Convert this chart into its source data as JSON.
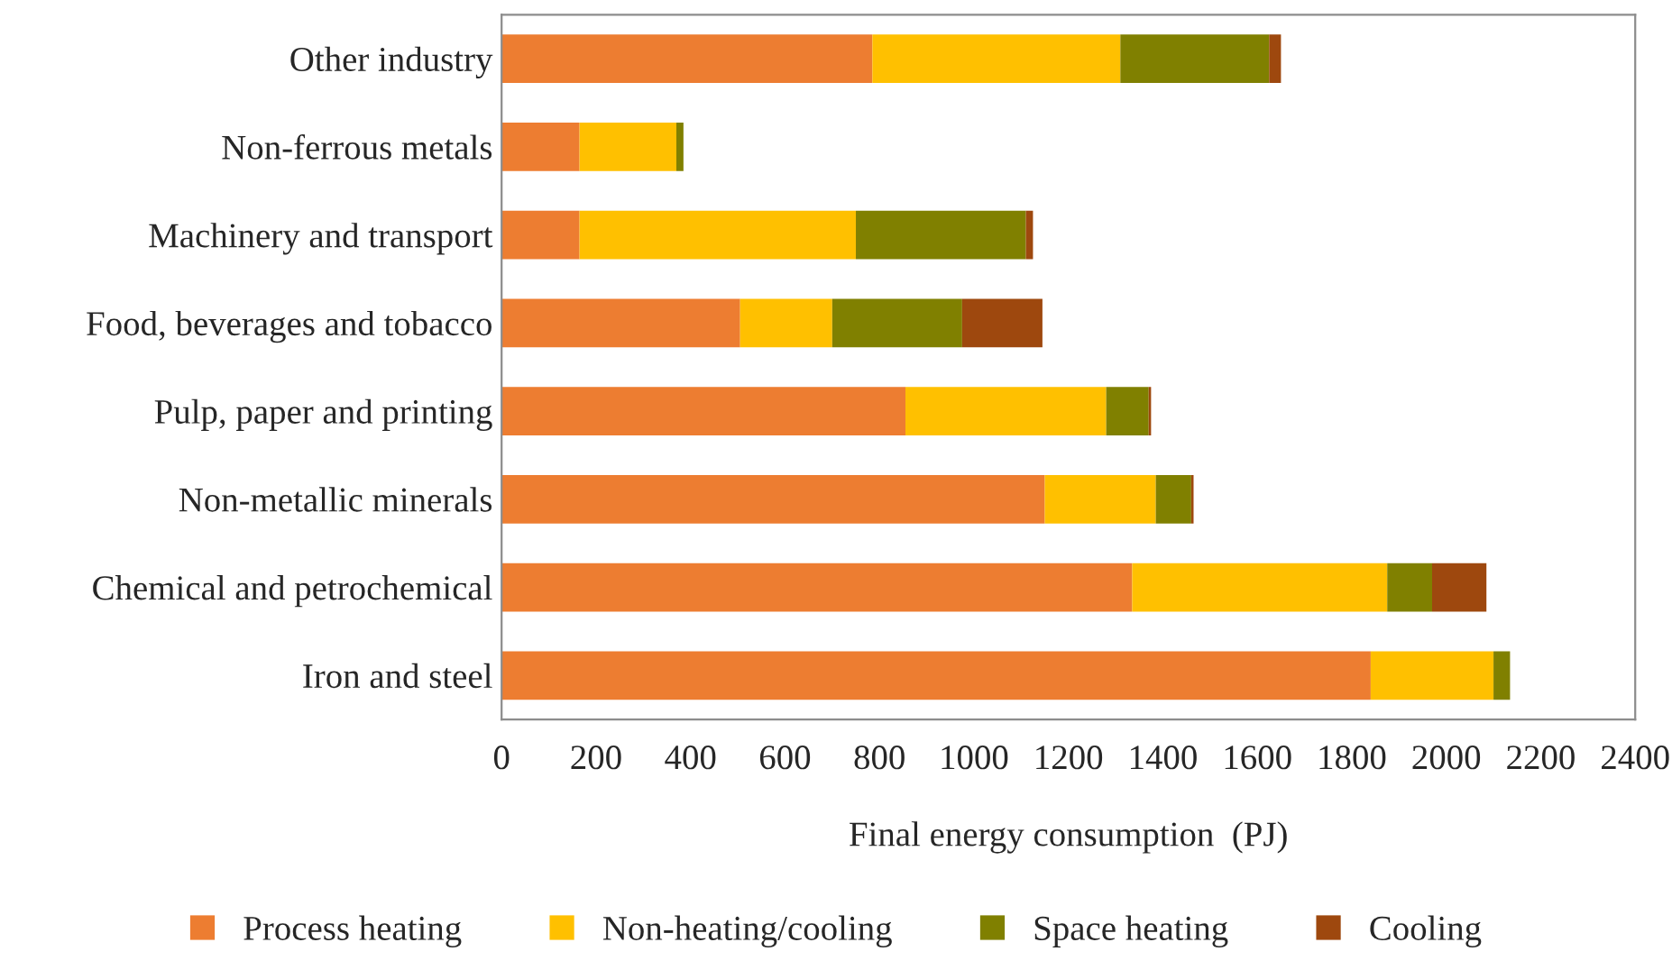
{
  "chart_data": {
    "type": "bar",
    "orientation": "horizontal",
    "stacked": true,
    "categories": [
      "Other industry",
      "Non-ferrous metals",
      "Machinery and transport",
      "Food, beverages and tobacco",
      "Pulp, paper and printing",
      "Non-metallic minerals",
      "Chemical and petrochemical",
      "Iron and steel"
    ],
    "series": [
      {
        "name": "Process heating",
        "color": "#ed7d31",
        "values": [
          785,
          165,
          165,
          505,
          855,
          1150,
          1335,
          1840
        ]
      },
      {
        "name": "Non-heating/cooling",
        "color": "#ffc000",
        "values": [
          525,
          205,
          585,
          195,
          425,
          235,
          540,
          260
        ]
      },
      {
        "name": "Space heating",
        "color": "#808000",
        "values": [
          315,
          15,
          360,
          275,
          90,
          75,
          95,
          35
        ]
      },
      {
        "name": "Cooling",
        "color": "#9e480e",
        "values": [
          25,
          0,
          15,
          170,
          5,
          5,
          115,
          0
        ]
      }
    ],
    "xlabel": "Final energy consumption  (PJ)",
    "xlim": [
      0,
      2400
    ],
    "xticks": [
      0,
      200,
      400,
      600,
      800,
      1000,
      1200,
      1400,
      1600,
      1800,
      2000,
      2200,
      2400
    ],
    "grid": false,
    "legend": "bottom"
  }
}
